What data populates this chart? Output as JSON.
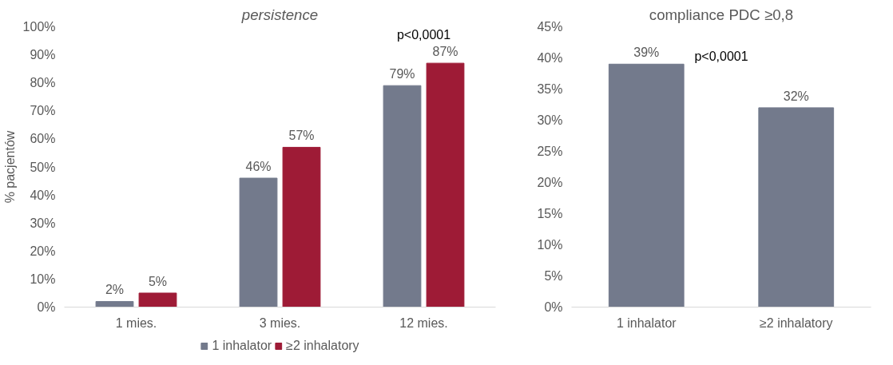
{
  "chart_data": [
    {
      "type": "bar",
      "title": "persistence",
      "ylabel": "% pacjentów",
      "categories": [
        "1 mies.",
        "3 mies.",
        "12 mies."
      ],
      "series": [
        {
          "name": "1 inhalator",
          "color": "#737a8c",
          "values": [
            2,
            46,
            79
          ],
          "value_labels": [
            "2%",
            "46%",
            "79%"
          ]
        },
        {
          "name": "≥2 inhalatory",
          "color": "#9e1b36",
          "values": [
            5,
            57,
            87
          ],
          "value_labels": [
            "5%",
            "57%",
            "87%"
          ]
        }
      ],
      "ylim": [
        0,
        100
      ],
      "yticks": [
        {
          "value": 0,
          "label": "0%"
        },
        {
          "value": 10,
          "label": "10%"
        },
        {
          "value": 20,
          "label": "20%"
        },
        {
          "value": 30,
          "label": "30%"
        },
        {
          "value": 40,
          "label": "40%"
        },
        {
          "value": 50,
          "label": "50%"
        },
        {
          "value": 60,
          "label": "60%"
        },
        {
          "value": 70,
          "label": "70%"
        },
        {
          "value": 80,
          "label": "80%"
        },
        {
          "value": 90,
          "label": "90%"
        },
        {
          "value": 100,
          "label": "100%"
        }
      ],
      "annotations": [
        "p<0,0001"
      ],
      "legend": "bottom",
      "grid": false
    },
    {
      "type": "bar",
      "title": "compliance PDC ≥0,8",
      "categories": [
        "1 inhalator",
        "≥2 inhalatory"
      ],
      "series": [
        {
          "color": "#737a8c",
          "values": [
            39,
            32
          ],
          "value_labels": [
            "39%",
            "32%"
          ]
        }
      ],
      "ylim": [
        0,
        45
      ],
      "yticks": [
        {
          "value": 0,
          "label": "0%"
        },
        {
          "value": 5,
          "label": "5%"
        },
        {
          "value": 10,
          "label": "10%"
        },
        {
          "value": 15,
          "label": "15%"
        },
        {
          "value": 20,
          "label": "20%"
        },
        {
          "value": 25,
          "label": "25%"
        },
        {
          "value": 30,
          "label": "30%"
        },
        {
          "value": 35,
          "label": "35%"
        },
        {
          "value": 40,
          "label": "40%"
        },
        {
          "value": 45,
          "label": "45%"
        }
      ],
      "annotations": [
        "p<0,0001"
      ],
      "grid": false
    }
  ]
}
